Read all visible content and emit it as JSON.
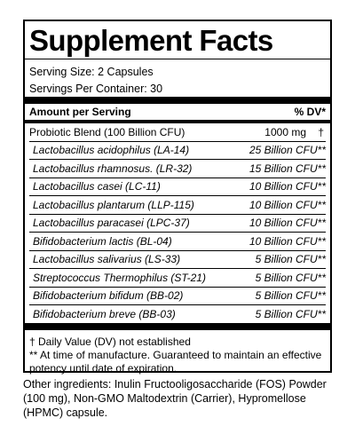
{
  "title": "Supplement Facts",
  "serving_size": "Serving Size: 2 Capsules",
  "servings_per_container": "Servings Per Container: 30",
  "header": {
    "amount_label": "Amount per Serving",
    "dv_label": "% DV*"
  },
  "blend": {
    "name": "Probiotic Blend (100 Billion CFU)",
    "amount": "1000 mg",
    "dv": "†"
  },
  "ingredients": [
    {
      "name": "Lactobacillus acidophilus (LA-14)",
      "amount": "25 Billion CFU**"
    },
    {
      "name": "Lactobacillus rhamnosus. (LR-32)",
      "amount": "15 Billion CFU**"
    },
    {
      "name": "Lactobacillus casei (LC-11)",
      "amount": "10 Billion CFU**"
    },
    {
      "name": "Lactobacillus plantarum (LLP-115)",
      "amount": "10 Billion CFU**"
    },
    {
      "name": "Lactobacillus paracasei (LPC-37)",
      "amount": "10 Billion CFU**"
    },
    {
      "name": "Bifidobacterium lactis (BL-04)",
      "amount": "10 Billion CFU**"
    },
    {
      "name": "Lactobacillus salivarius (LS-33)",
      "amount": "5 Billion CFU**"
    },
    {
      "name": "Streptococcus Thermophilus (ST-21)",
      "amount": "5 Billion CFU**"
    },
    {
      "name": "Bifidobacterium bifidum (BB-02)",
      "amount": "5 Billion CFU**"
    },
    {
      "name": "Bifidobacterium breve (BB-03)",
      "amount": "5 Billion CFU**"
    }
  ],
  "footnotes": {
    "dagger": "† Daily Value (DV) not established",
    "double_asterisk": "** At time of manufacture. Guaranteed to maintain an effective potency until date of expiration."
  },
  "other_ingredients": "Other ingredients: Inulin Fructooligosaccharide (FOS) Powder (100 mg), Non-GMO Maltodextrin (Carrier), Hypromellose (HPMC) capsule."
}
